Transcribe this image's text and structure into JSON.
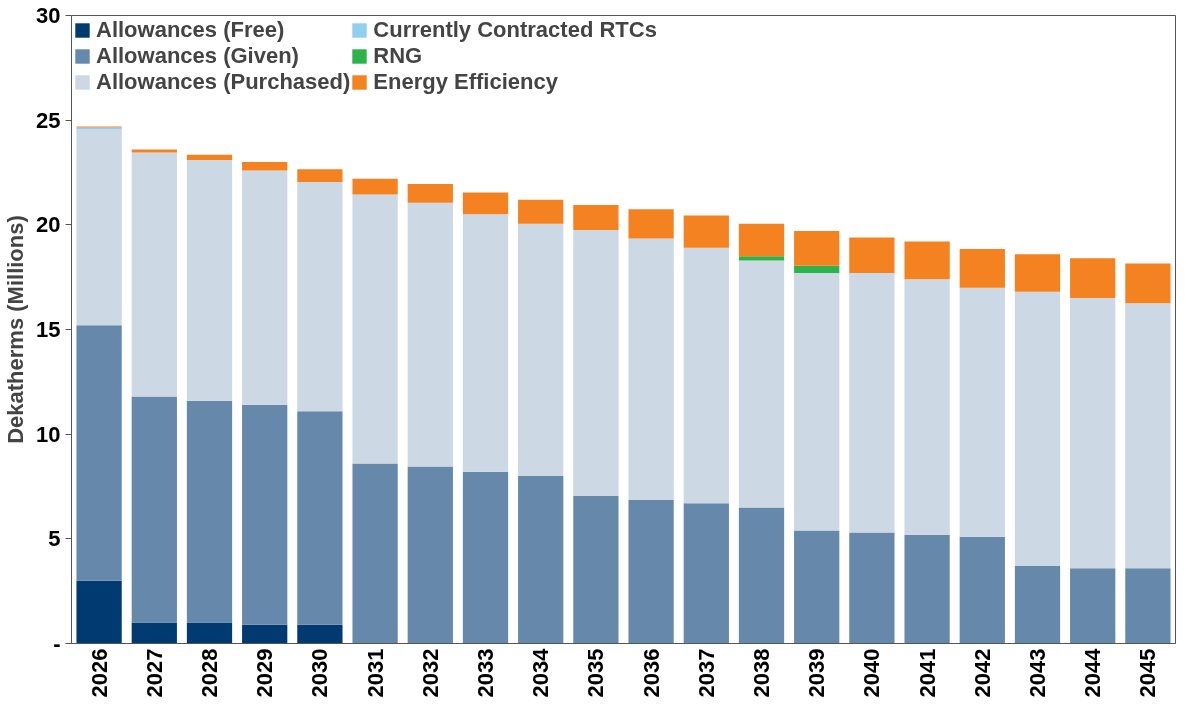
{
  "chart_data": {
    "type": "bar",
    "stacked": true,
    "ylabel": "Dekatherms (Millions)",
    "categories": [
      "2026",
      "2027",
      "2028",
      "2029",
      "2030",
      "2031",
      "2032",
      "2033",
      "2034",
      "2035",
      "2036",
      "2037",
      "2038",
      "2039",
      "2040",
      "2041",
      "2042",
      "2043",
      "2044",
      "2045"
    ],
    "series": [
      {
        "name": "Allowances (Free)",
        "color": "#003a70",
        "values": [
          3.0,
          1.0,
          1.0,
          0.9,
          0.9,
          null,
          null,
          null,
          null,
          null,
          null,
          null,
          null,
          null,
          null,
          null,
          null,
          null,
          null,
          null
        ]
      },
      {
        "name": "Allowances (Given)",
        "color": "#6688aa",
        "values": [
          12.2,
          10.8,
          10.6,
          10.5,
          10.2,
          8.6,
          8.45,
          8.2,
          8.0,
          7.05,
          6.85,
          6.7,
          6.5,
          5.4,
          5.3,
          5.2,
          5.1,
          3.7,
          3.6,
          3.6
        ]
      },
      {
        "name": "Allowances (Purchased)",
        "color": "#ccd8e4",
        "values": [
          9.35,
          11.65,
          11.5,
          11.2,
          10.95,
          12.85,
          12.6,
          12.3,
          12.05,
          12.7,
          12.5,
          12.2,
          11.8,
          12.3,
          12.4,
          12.2,
          11.9,
          13.1,
          12.9,
          12.65
        ]
      },
      {
        "name": "Currently Contracted RTCs",
        "color": "#8fd0f0",
        "values": [
          0.1,
          null,
          null,
          null,
          null,
          null,
          null,
          null,
          null,
          null,
          null,
          null,
          null,
          null,
          null,
          null,
          null,
          null,
          null,
          null
        ]
      },
      {
        "name": "RNG",
        "color": "#2db34a",
        "values": [
          null,
          null,
          null,
          null,
          null,
          null,
          null,
          null,
          null,
          null,
          null,
          null,
          0.2,
          0.35,
          null,
          null,
          null,
          null,
          null,
          null
        ]
      },
      {
        "name": "Energy Efficiency",
        "color": "#f58220",
        "values": [
          0.05,
          0.15,
          0.25,
          0.4,
          0.6,
          0.75,
          0.9,
          1.05,
          1.15,
          1.2,
          1.4,
          1.55,
          1.55,
          1.65,
          1.7,
          1.8,
          1.85,
          1.8,
          1.9,
          1.9
        ]
      }
    ],
    "ylim": [
      0,
      30
    ],
    "yticks": [
      {
        "value": 0,
        "label": "-"
      },
      5,
      10,
      15,
      20,
      25,
      30
    ],
    "grid": false,
    "legend": "top left"
  }
}
